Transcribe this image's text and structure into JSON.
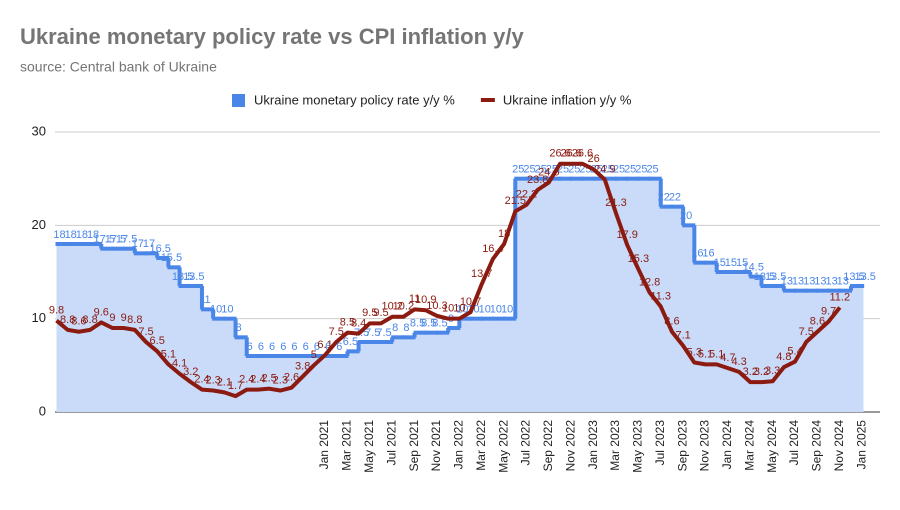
{
  "chart_data": {
    "type": "line",
    "title": "Ukraine monetary policy rate vs CPI inflation y/y",
    "subtitle": "source: Central bank of Ukraine",
    "categories": [
      null,
      null,
      null,
      null,
      null,
      null,
      null,
      null,
      null,
      null,
      null,
      null,
      null,
      null,
      null,
      null,
      null,
      null,
      null,
      null,
      null,
      null,
      null,
      null,
      "Jan 2021",
      null,
      "Mar 2021",
      null,
      "May 2021",
      null,
      "Jul 2021",
      null,
      "Sep 2021",
      null,
      "Nov 2021",
      null,
      "Jan 2022",
      null,
      "Mar 2022",
      null,
      "May 2022",
      null,
      "Jul 2022",
      null,
      "Sep 2022",
      null,
      "Nov 2022",
      null,
      "Jan 2023",
      null,
      "Mar 2023",
      null,
      "May 2023",
      null,
      "Jul 2023",
      null,
      "Sep 2023",
      null,
      "Nov 2023",
      null,
      "Jan 2024",
      null,
      "Mar 2024",
      null,
      "May 2024",
      null,
      "Jul 2024",
      null,
      "Sep 2024",
      null,
      "Nov 2024",
      null,
      "Jan 2025"
    ],
    "series": [
      {
        "name": "Ukraine monetary policy rate y/y %",
        "color": "#4a86e8",
        "style": "step-area",
        "values": [
          18,
          18,
          18,
          18,
          17.5,
          17.5,
          17.5,
          17,
          17,
          16.5,
          15.5,
          13.5,
          13.5,
          11,
          10,
          10,
          8,
          6,
          6,
          6,
          6,
          6,
          6,
          6,
          6,
          6,
          6.5,
          7.5,
          7.5,
          7.5,
          8,
          8,
          8.5,
          8.5,
          8.5,
          9,
          10,
          10,
          10,
          10,
          10,
          25,
          25,
          25,
          25,
          25,
          25,
          25,
          25,
          25,
          25,
          25,
          25,
          25,
          22,
          22,
          20,
          16,
          16,
          15,
          15,
          15,
          14.5,
          13.5,
          13.5,
          13,
          13,
          13,
          13,
          13,
          13,
          13.5,
          13.5
        ]
      },
      {
        "name": "Ukraine inflation y/y %",
        "color": "#8b1a10",
        "style": "line",
        "values": [
          9.8,
          8.8,
          8.6,
          8.8,
          9.6,
          9,
          9,
          8.8,
          7.5,
          6.5,
          5.1,
          4.1,
          3.2,
          2.4,
          2.3,
          2.1,
          1.7,
          2.4,
          2.4,
          2.5,
          2.3,
          2.6,
          3.8,
          5,
          6.1,
          7.5,
          8.5,
          8.4,
          9.5,
          9.5,
          10.2,
          10.2,
          11,
          10.9,
          10.3,
          10,
          10,
          10.7,
          13.7,
          16.4,
          18,
          21.5,
          22.2,
          23.8,
          24.6,
          26.6,
          26.6,
          26.6,
          26,
          24.9,
          21.3,
          17.9,
          15.3,
          12.8,
          11.3,
          8.6,
          7.1,
          5.3,
          5.1,
          5.1,
          4.7,
          4.3,
          3.2,
          3.2,
          3.3,
          4.8,
          5.4,
          7.5,
          8.6,
          9.7,
          11.2,
          null,
          null
        ]
      }
    ],
    "ylim": [
      0,
      30
    ],
    "yticks": [
      0,
      10,
      20,
      30
    ],
    "grid": true,
    "legend": "top"
  }
}
